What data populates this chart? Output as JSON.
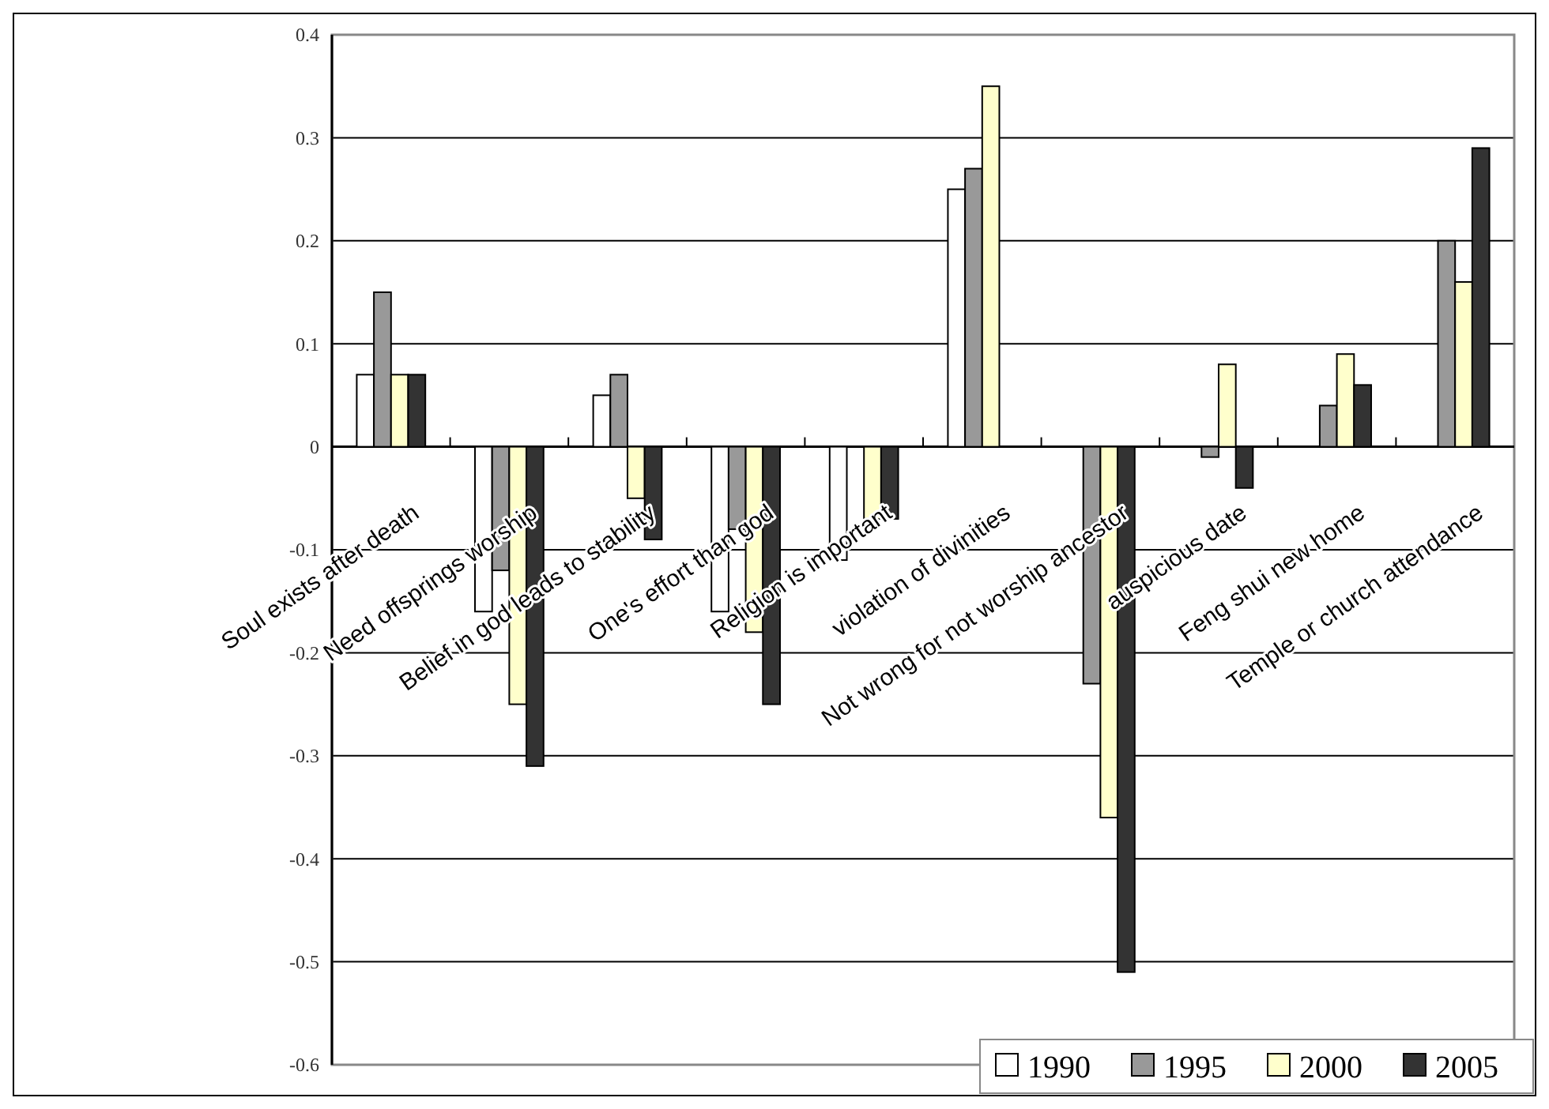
{
  "chart_data": {
    "type": "bar",
    "categories": [
      "Soul exists after death",
      "Need offsprings worship",
      "Belief in god leads to stability",
      "One's effort than god",
      "Religion is important",
      "violation of divinities",
      "Not wrong for not worship ancestor",
      "auspicious date",
      "Feng shui new home",
      "Temple or church attendance"
    ],
    "series": [
      {
        "name": "1990",
        "color": "#ffffff",
        "values": [
          0.07,
          -0.16,
          0.05,
          -0.16,
          -0.11,
          0.25,
          null,
          null,
          null,
          null
        ]
      },
      {
        "name": "1995",
        "color": "#999999",
        "values": [
          0.15,
          -0.12,
          0.07,
          -0.08,
          null,
          0.27,
          -0.23,
          -0.01,
          0.04,
          0.2
        ]
      },
      {
        "name": "2000",
        "color": "#ffffcc",
        "values": [
          0.07,
          -0.25,
          -0.05,
          -0.18,
          -0.07,
          0.35,
          -0.36,
          0.08,
          0.09,
          0.16
        ]
      },
      {
        "name": "2005",
        "color": "#333333",
        "values": [
          0.07,
          -0.31,
          -0.09,
          -0.25,
          -0.07,
          null,
          -0.51,
          -0.04,
          0.06,
          0.29
        ]
      }
    ],
    "ylim": [
      -0.6,
      0.4
    ],
    "yticks": [
      -0.6,
      -0.5,
      -0.4,
      -0.3,
      -0.2,
      -0.1,
      0,
      0.1,
      0.2,
      0.3,
      0.4
    ],
    "grid": "y",
    "legend": "bottom right"
  }
}
